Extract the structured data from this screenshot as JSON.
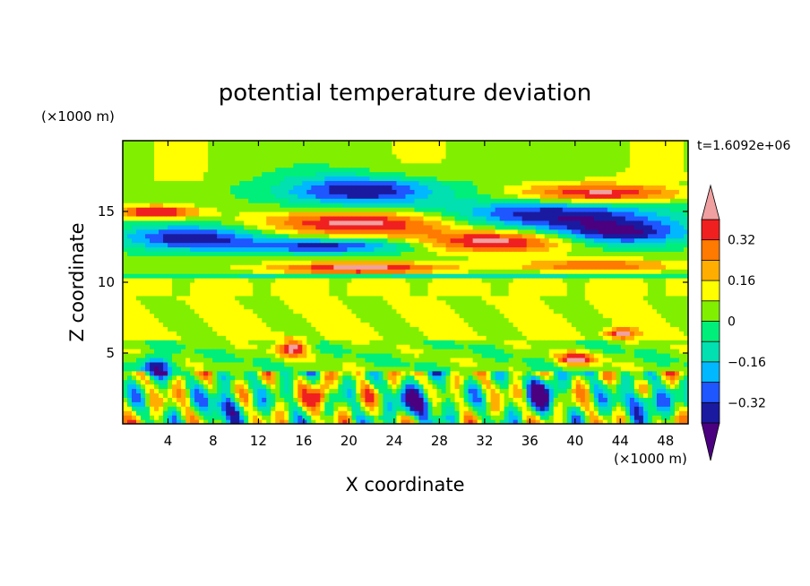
{
  "chart_data": {
    "type": "heatmap",
    "title": "potential temperature deviation",
    "xlabel": "X coordinate",
    "ylabel": "Z coordinate",
    "x_unit_label": "(×1000 m)",
    "y_unit_label": "(×1000 m)",
    "time_label": "t=1.6092e+06",
    "xlim": [
      0,
      50
    ],
    "ylim": [
      0,
      20
    ],
    "x_ticks": [
      4,
      8,
      12,
      16,
      20,
      24,
      28,
      32,
      36,
      40,
      44,
      48
    ],
    "y_ticks": [
      5,
      10,
      15
    ],
    "grid": false,
    "colorbar": {
      "orientation": "vertical",
      "placement": "right",
      "extend": "both",
      "levels": [
        -0.4,
        -0.32,
        -0.24,
        -0.16,
        -0.08,
        0,
        0.08,
        0.16,
        0.24,
        0.32,
        0.4
      ],
      "tick_labels": [
        "0.32",
        "0.16",
        "0",
        "−0.16",
        "−0.32"
      ],
      "tick_values": [
        0.32,
        0.16,
        0,
        -0.16,
        -0.32
      ],
      "colors": [
        "#4b0080",
        "#1a1aa0",
        "#1e56ff",
        "#00b8ff",
        "#00e0b0",
        "#00ee7a",
        "#80f000",
        "#ffff00",
        "#ffae00",
        "#ff7a00",
        "#f02020",
        "#f0a0a0"
      ]
    },
    "features": [
      {
        "x": 21,
        "z": 16.5,
        "rx": 8,
        "rz": 1.2,
        "value": -0.42
      },
      {
        "x": 42,
        "z": 16.3,
        "rx": 8,
        "rz": 0.8,
        "value": 0.42
      },
      {
        "x": 3,
        "z": 15.0,
        "rx": 4,
        "rz": 0.5,
        "value": 0.42
      },
      {
        "x": 21,
        "z": 14.2,
        "rx": 10,
        "rz": 1.0,
        "value": 0.42
      },
      {
        "x": 33,
        "z": 12.9,
        "rx": 8,
        "rz": 0.9,
        "value": 0.42
      },
      {
        "x": 38,
        "z": 14.8,
        "rx": 11,
        "rz": 1.2,
        "value": -0.42
      },
      {
        "x": 6,
        "z": 13.2,
        "rx": 7,
        "rz": 1.0,
        "value": -0.42
      },
      {
        "x": 44,
        "z": 13.5,
        "rx": 7,
        "rz": 1.0,
        "value": -0.42
      },
      {
        "x": 18,
        "z": 12.6,
        "rx": 9,
        "rz": 0.6,
        "value": -0.38
      },
      {
        "x": 21,
        "z": 11.0,
        "rx": 9,
        "rz": 0.5,
        "value": 0.42
      },
      {
        "x": 25,
        "z": 10.5,
        "rx": 25,
        "rz": 0.25,
        "value": -0.2
      },
      {
        "x": 42,
        "z": 11.2,
        "rx": 8,
        "rz": 0.5,
        "value": 0.3
      },
      {
        "x": 15,
        "z": 5.4,
        "rx": 1.5,
        "rz": 0.7,
        "value": 0.4
      },
      {
        "x": 40,
        "z": 4.6,
        "rx": 2,
        "rz": 0.5,
        "value": 0.4
      },
      {
        "x": 44,
        "z": 6.4,
        "rx": 1.5,
        "rz": 0.4,
        "value": 0.4
      },
      {
        "x": 17.5,
        "z": 2.0,
        "rx": 0.8,
        "rz": 1.2,
        "value": 0.42
      },
      {
        "x": 3,
        "z": 4.1,
        "rx": 1.5,
        "rz": 0.8,
        "value": -0.42
      },
      {
        "x": 9,
        "z": 1.2,
        "rx": 1.5,
        "rz": 1.2,
        "value": -0.38
      },
      {
        "x": 26,
        "z": 1.5,
        "rx": 2,
        "rz": 1.2,
        "value": -0.42
      },
      {
        "x": 37,
        "z": 2.2,
        "rx": 1.5,
        "rz": 1.4,
        "value": -0.42
      },
      {
        "x": 46,
        "z": 1.5,
        "rx": 2,
        "rz": 1.0,
        "value": -0.38
      }
    ]
  }
}
